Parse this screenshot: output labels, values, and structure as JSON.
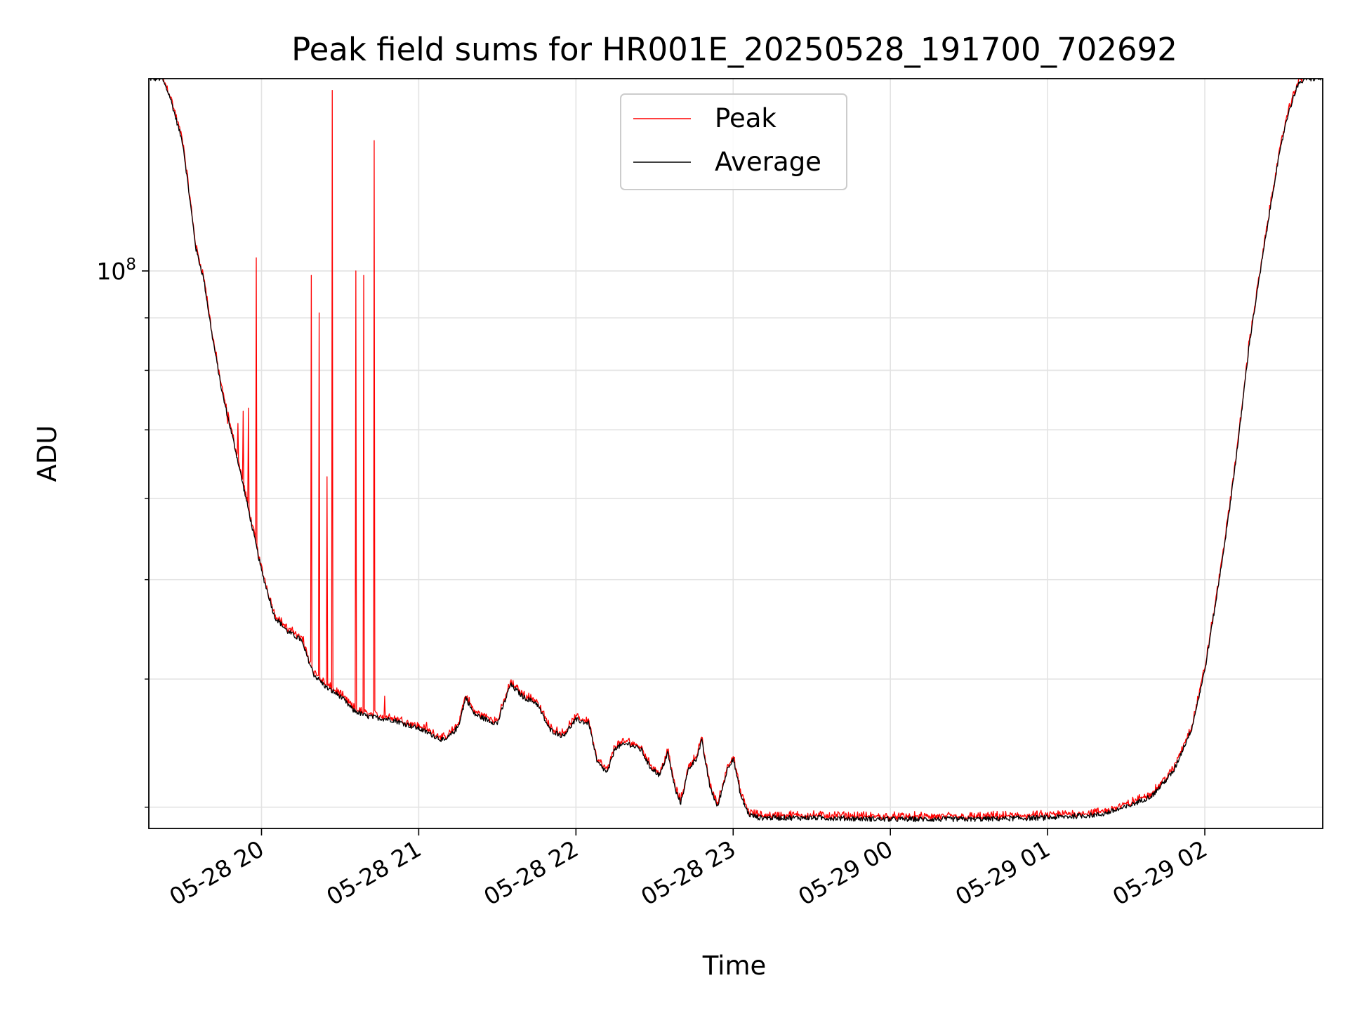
{
  "chart_data": {
    "type": "line",
    "title": "Peak field sums for HR001E_20250528_191700_702692",
    "xlabel": "Time",
    "ylabel": "ADU",
    "y_scale": "log",
    "ylim": [
      28600000,
      154000000
    ],
    "xlim": [
      "05-28 19:17",
      "05-29 02:45"
    ],
    "grid": true,
    "legend": "upper center",
    "x_ticks": [
      "05-28 20:00",
      "05-28 21:00",
      "05-28 22:00",
      "05-28 23:00",
      "05-29 00:00",
      "05-29 01:00",
      "05-29 02:00"
    ],
    "x_tick_labels": [
      "05-28 20",
      "05-28 21",
      "05-28 22",
      "05-28 23",
      "05-29 00",
      "05-29 01",
      "05-29 02"
    ],
    "y_tick_label": {
      "base": "10",
      "exp": "8",
      "value": 100000000
    },
    "y_minor_ticks": [
      30000000,
      40000000,
      50000000,
      60000000,
      70000000,
      80000000,
      90000000,
      200000000
    ],
    "colors": {
      "peak": "#ff0000",
      "average": "#000000"
    },
    "series": [
      {
        "name": "Average",
        "color": "#000000",
        "points": [
          [
            "05-28 19:17",
            154000000
          ],
          [
            "05-28 19:22",
            154000000
          ],
          [
            "05-28 19:25",
            148000000
          ],
          [
            "05-28 19:30",
            133000000
          ],
          [
            "05-28 19:35",
            105000000
          ],
          [
            "05-28 19:38",
            98000000
          ],
          [
            "05-28 19:41",
            87000000
          ],
          [
            "05-28 19:45",
            76000000
          ],
          [
            "05-28 19:50",
            67000000
          ],
          [
            "05-28 19:55",
            58500000
          ],
          [
            "05-28 20:00",
            51000000
          ],
          [
            "05-28 20:05",
            46000000
          ],
          [
            "05-28 20:10",
            44500000
          ],
          [
            "05-28 20:15",
            43700000
          ],
          [
            "05-28 20:20",
            40400000
          ],
          [
            "05-28 20:25",
            39200000
          ],
          [
            "05-28 20:30",
            38500000
          ],
          [
            "05-28 20:35",
            37300000
          ],
          [
            "05-28 20:40",
            36800000
          ],
          [
            "05-28 20:50",
            36500000
          ],
          [
            "05-28 21:00",
            35800000
          ],
          [
            "05-28 21:05",
            35300000
          ],
          [
            "05-28 21:10",
            34800000
          ],
          [
            "05-28 21:15",
            35900000
          ],
          [
            "05-28 21:18",
            38400000
          ],
          [
            "05-28 21:21",
            37000000
          ],
          [
            "05-28 21:25",
            36600000
          ],
          [
            "05-28 21:30",
            36200000
          ],
          [
            "05-28 21:35",
            39500000
          ],
          [
            "05-28 21:40",
            38400000
          ],
          [
            "05-28 21:45",
            37900000
          ],
          [
            "05-28 21:50",
            35700000
          ],
          [
            "05-28 21:55",
            35200000
          ],
          [
            "05-28 22:00",
            36500000
          ],
          [
            "05-28 22:05",
            36200000
          ],
          [
            "05-28 22:08",
            33200000
          ],
          [
            "05-28 22:12",
            32400000
          ],
          [
            "05-28 22:15",
            34300000
          ],
          [
            "05-28 22:20",
            34600000
          ],
          [
            "05-28 22:25",
            34100000
          ],
          [
            "05-28 22:28",
            32900000
          ],
          [
            "05-28 22:32",
            32200000
          ],
          [
            "05-28 22:35",
            33900000
          ],
          [
            "05-28 22:38",
            31100000
          ],
          [
            "05-28 22:40",
            30300000
          ],
          [
            "05-28 22:43",
            32700000
          ],
          [
            "05-28 22:46",
            33500000
          ],
          [
            "05-28 22:48",
            34800000
          ],
          [
            "05-28 22:51",
            31500000
          ],
          [
            "05-28 22:54",
            30000000
          ],
          [
            "05-28 22:58",
            32800000
          ],
          [
            "05-28 23:00",
            33500000
          ],
          [
            "05-28 23:03",
            30700000
          ],
          [
            "05-28 23:06",
            29500000
          ],
          [
            "05-28 23:10",
            29300000
          ],
          [
            "05-28 23:30",
            29300000
          ],
          [
            "05-29 00:00",
            29200000
          ],
          [
            "05-29 00:30",
            29200000
          ],
          [
            "05-29 01:00",
            29300000
          ],
          [
            "05-29 01:20",
            29500000
          ],
          [
            "05-29 01:30",
            30000000
          ],
          [
            "05-29 01:40",
            30800000
          ],
          [
            "05-29 01:48",
            32500000
          ],
          [
            "05-29 01:55",
            35800000
          ],
          [
            "05-29 02:00",
            40800000
          ],
          [
            "05-29 02:05",
            49000000
          ],
          [
            "05-29 02:09",
            57500000
          ],
          [
            "05-29 02:13",
            69000000
          ],
          [
            "05-29 02:17",
            85000000
          ],
          [
            "05-29 02:22",
            103000000
          ],
          [
            "05-29 02:27",
            124000000
          ],
          [
            "05-29 02:31",
            140000000
          ],
          [
            "05-29 02:35",
            151000000
          ],
          [
            "05-29 02:38",
            154000000
          ],
          [
            "05-29 02:45",
            154000000
          ]
        ]
      },
      {
        "name": "Peak",
        "color": "#ff0000",
        "note_spikes": "Peak follows Average closely with isolated spikes",
        "spikes": [
          [
            "05-28 19:47",
            71000000
          ],
          [
            "05-28 19:51",
            71000000
          ],
          [
            "05-28 19:53",
            73000000
          ],
          [
            "05-28 19:55",
            73500000
          ],
          [
            "05-28 19:58",
            103000000
          ],
          [
            "05-28 20:10",
            44500000
          ],
          [
            "05-28 20:13",
            44500000
          ],
          [
            "05-28 20:16",
            44000000
          ],
          [
            "05-28 20:19",
            99000000
          ],
          [
            "05-28 20:22",
            91000000
          ],
          [
            "05-28 20:25",
            63000000
          ],
          [
            "05-28 20:27",
            150000000
          ],
          [
            "05-28 20:36",
            100000000
          ],
          [
            "05-28 20:39",
            99000000
          ],
          [
            "05-28 20:43",
            134000000
          ],
          [
            "05-28 20:47",
            38500000
          ],
          [
            "05-28 21:03",
            36300000
          ]
        ]
      }
    ]
  }
}
